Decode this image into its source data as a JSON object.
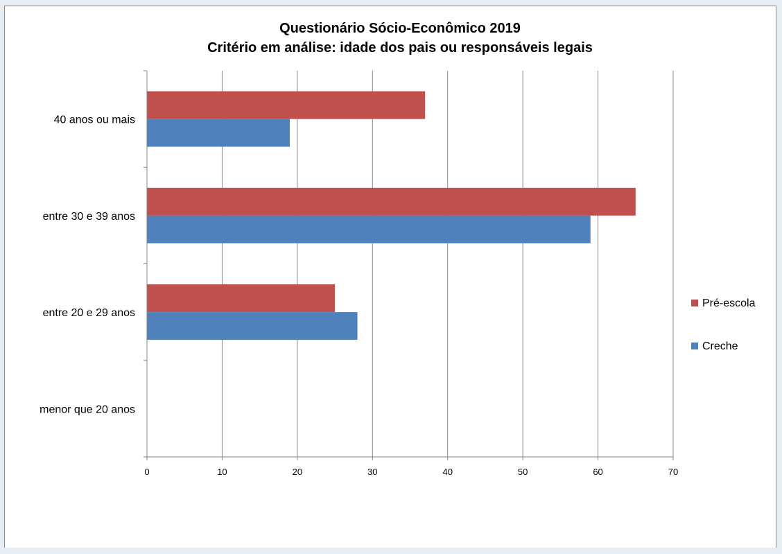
{
  "chart_data": {
    "type": "bar",
    "orientation": "horizontal",
    "title": "Questionário Sócio-Econômico 2019",
    "subtitle": "Critério em análise: idade dos pais ou responsáveis legais",
    "categories": [
      "40 anos ou mais",
      "entre 30 e 39 anos",
      "entre 20 e 29 anos",
      "menor que 20 anos"
    ],
    "series": [
      {
        "name": "Pré-escola",
        "color": "#c0504d",
        "values": [
          37,
          65,
          25,
          0
        ]
      },
      {
        "name": "Creche",
        "color": "#4f81bd",
        "values": [
          19,
          59,
          28,
          0
        ]
      }
    ],
    "xlim": [
      0,
      70
    ],
    "xticks": [
      0,
      10,
      20,
      30,
      40,
      50,
      60,
      70
    ],
    "xlabel": "",
    "ylabel": "",
    "grid": "vertical",
    "legend_position": "right"
  }
}
